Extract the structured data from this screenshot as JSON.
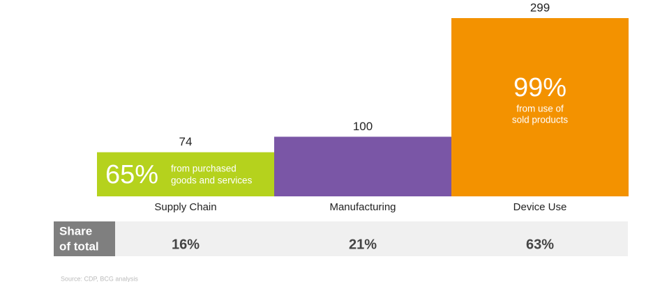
{
  "chart_data": {
    "type": "bar",
    "categories": [
      "Supply Chain",
      "Manufacturing",
      "Device Use"
    ],
    "values": [
      74,
      100,
      299
    ],
    "colors": [
      "#b5d21d",
      "#7a56a6",
      "#f39200"
    ],
    "bar_annotations": [
      {
        "headline": "65%",
        "lines": [
          "from purchased",
          "goods and services"
        ]
      },
      null,
      {
        "headline": "99%",
        "lines": [
          "from use of",
          "sold products"
        ]
      }
    ],
    "share_of_total": {
      "label": [
        "Share",
        "of total"
      ],
      "values": [
        16,
        21,
        63
      ],
      "value_labels": [
        "16%",
        "21%",
        "63%"
      ]
    },
    "source": "Source: CDP, BCG analysis"
  }
}
